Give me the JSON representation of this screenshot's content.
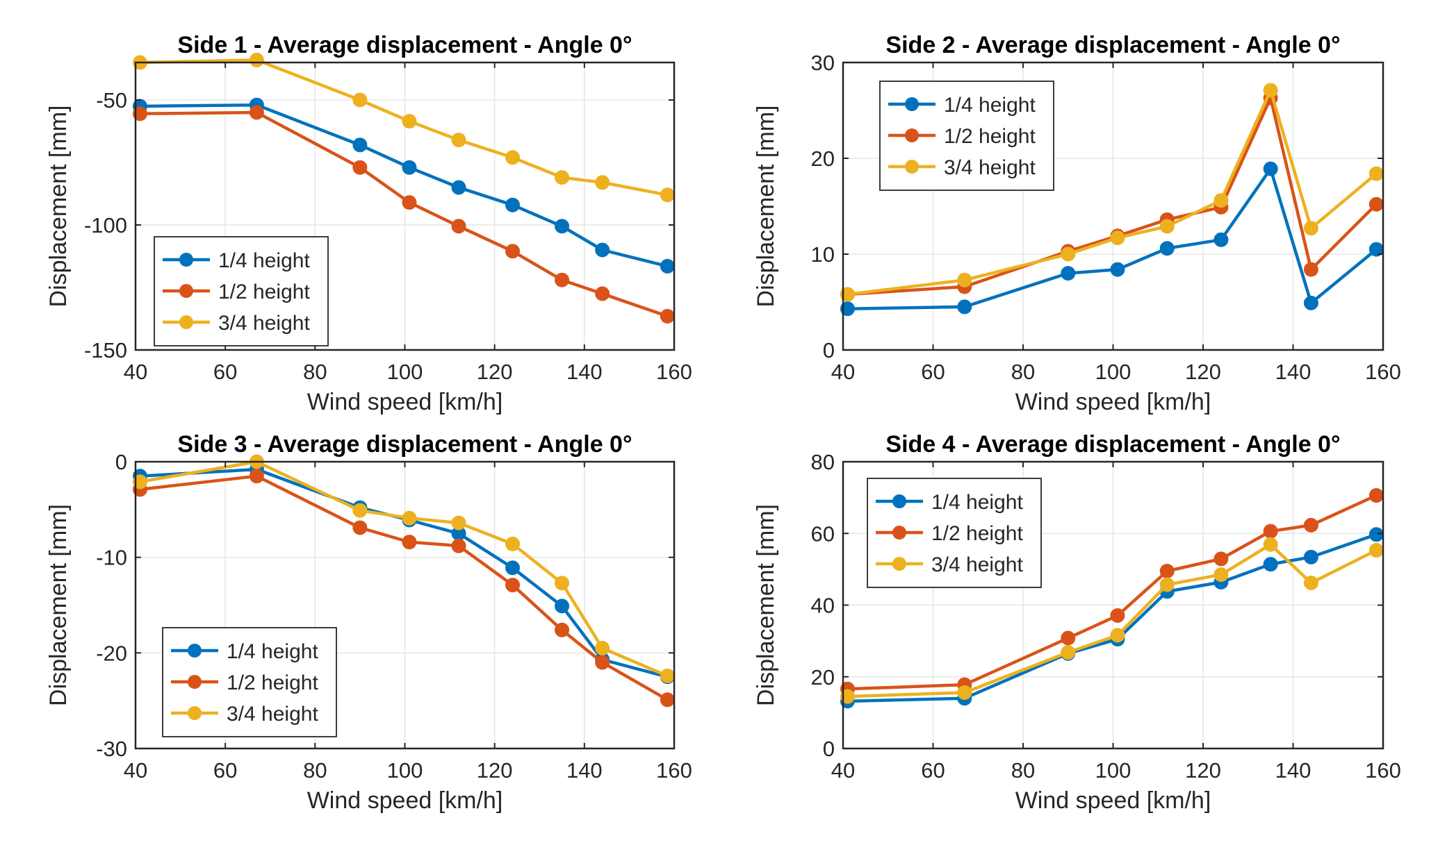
{
  "colors": {
    "series1": "#0072BD",
    "series2": "#D95319",
    "series3": "#EDB120",
    "grid": "#e6e6e6",
    "axis": "#262626"
  },
  "chart_data": [
    {
      "type": "line",
      "title": "Side 1 - Average displacement - Angle 0°",
      "xlabel": "Wind speed [km/h]",
      "ylabel": "Displacement [mm]",
      "xlim": [
        40,
        160
      ],
      "ylim": [
        -150,
        -35
      ],
      "xticks": [
        40,
        60,
        80,
        100,
        120,
        140,
        160
      ],
      "yticks": [
        -150,
        -100,
        -50
      ],
      "xtick_labels": [
        "40",
        "60",
        "80",
        "100",
        "120",
        "140",
        "160"
      ],
      "ytick_labels": [
        "-150",
        "-100",
        "-50"
      ],
      "grid": true,
      "legend_position": "bottom-left",
      "x": [
        41,
        67,
        90,
        101,
        112,
        124,
        135,
        144,
        158.5
      ],
      "series": [
        {
          "name": "1/4 height",
          "values": [
            -52.5,
            -52,
            -68,
            -77,
            -85,
            -92,
            -100.5,
            -110,
            -116.5
          ]
        },
        {
          "name": "1/2 height",
          "values": [
            -55.5,
            -55,
            -77,
            -91,
            -100.5,
            -110.5,
            -122,
            -127.5,
            -136.5
          ]
        },
        {
          "name": "3/4 height",
          "values": [
            -35,
            -34,
            -50,
            -58.5,
            -66,
            -73,
            -81,
            -83,
            -88
          ]
        }
      ]
    },
    {
      "type": "line",
      "title": "Side 2 - Average displacement - Angle 0°",
      "xlabel": "Wind speed [km/h]",
      "ylabel": "Displacement [mm]",
      "xlim": [
        40,
        160
      ],
      "ylim": [
        0,
        30
      ],
      "xticks": [
        40,
        60,
        80,
        100,
        120,
        140,
        160
      ],
      "yticks": [
        0,
        10,
        20,
        30
      ],
      "xtick_labels": [
        "40",
        "60",
        "80",
        "100",
        "120",
        "140",
        "160"
      ],
      "ytick_labels": [
        "0",
        "10",
        "20",
        "30"
      ],
      "grid": true,
      "legend_position": "top-left",
      "x": [
        41,
        67,
        90,
        101,
        112,
        124,
        135,
        144,
        158.5
      ],
      "series": [
        {
          "name": "1/4 height",
          "values": [
            4.3,
            4.5,
            8.0,
            8.4,
            10.6,
            11.5,
            18.9,
            4.9,
            10.5
          ]
        },
        {
          "name": "1/2 height",
          "values": [
            5.8,
            6.6,
            10.3,
            11.9,
            13.6,
            14.9,
            26.3,
            8.4,
            15.2
          ]
        },
        {
          "name": "3/4 height",
          "values": [
            5.8,
            7.3,
            10.0,
            11.7,
            12.9,
            15.6,
            27.1,
            12.7,
            18.4
          ]
        }
      ]
    },
    {
      "type": "line",
      "title": "Side 3 - Average displacement - Angle 0°",
      "xlabel": "Wind speed [km/h]",
      "ylabel": "Displacement [mm]",
      "xlim": [
        40,
        160
      ],
      "ylim": [
        -30,
        0
      ],
      "xticks": [
        40,
        60,
        80,
        100,
        120,
        140,
        160
      ],
      "yticks": [
        -30,
        -20,
        -10,
        0
      ],
      "xtick_labels": [
        "40",
        "60",
        "80",
        "100",
        "120",
        "140",
        "160"
      ],
      "ytick_labels": [
        "-30",
        "-20",
        "-10",
        "0"
      ],
      "grid": true,
      "legend_position": "bottom-left",
      "x": [
        41,
        67,
        90,
        101,
        112,
        124,
        135,
        144,
        158.5
      ],
      "series": [
        {
          "name": "1/4 height",
          "values": [
            -1.5,
            -0.8,
            -4.8,
            -6.1,
            -7.5,
            -11.1,
            -15.1,
            -20.7,
            -22.5
          ]
        },
        {
          "name": "1/2 height",
          "values": [
            -2.9,
            -1.5,
            -6.9,
            -8.4,
            -8.8,
            -12.9,
            -17.6,
            -21.0,
            -24.9
          ]
        },
        {
          "name": "3/4 height",
          "values": [
            -2.1,
            0.0,
            -5.1,
            -5.9,
            -6.4,
            -8.6,
            -12.7,
            -19.5,
            -22.4
          ]
        }
      ]
    },
    {
      "type": "line",
      "title": "Side 4 - Average displacement - Angle 0°",
      "xlabel": "Wind speed [km/h]",
      "ylabel": "Displacement [mm]",
      "xlim": [
        40,
        160
      ],
      "ylim": [
        0,
        80
      ],
      "xticks": [
        40,
        60,
        80,
        100,
        120,
        140,
        160
      ],
      "yticks": [
        0,
        20,
        40,
        60,
        80
      ],
      "xtick_labels": [
        "40",
        "60",
        "80",
        "100",
        "120",
        "140",
        "160"
      ],
      "ytick_labels": [
        "0",
        "20",
        "40",
        "60",
        "80"
      ],
      "grid": true,
      "legend_position": "top-left",
      "x": [
        41,
        67,
        90,
        101,
        112,
        124,
        135,
        144,
        158.5
      ],
      "series": [
        {
          "name": "1/4 height",
          "values": [
            13.2,
            14.0,
            26.5,
            30.5,
            43.8,
            46.4,
            51.4,
            53.4,
            59.7
          ]
        },
        {
          "name": "1/2 height",
          "values": [
            16.6,
            17.8,
            30.8,
            37.1,
            49.5,
            52.9,
            60.6,
            62.3,
            70.6
          ]
        },
        {
          "name": "3/4 height",
          "values": [
            14.5,
            15.6,
            26.8,
            31.6,
            45.7,
            48.5,
            56.9,
            46.2,
            55.3
          ]
        }
      ]
    }
  ]
}
